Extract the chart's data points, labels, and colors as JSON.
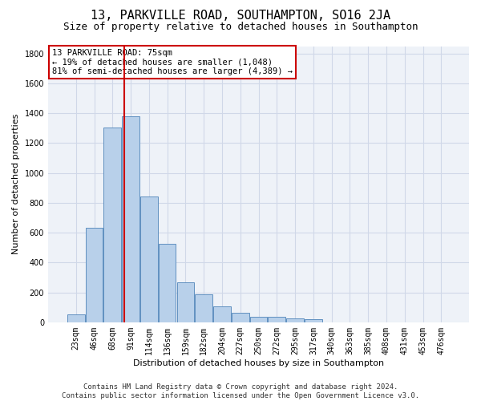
{
  "title": "13, PARKVILLE ROAD, SOUTHAMPTON, SO16 2JA",
  "subtitle": "Size of property relative to detached houses in Southampton",
  "xlabel": "Distribution of detached houses by size in Southampton",
  "ylabel": "Number of detached properties",
  "footer_line1": "Contains HM Land Registry data © Crown copyright and database right 2024.",
  "footer_line2": "Contains public sector information licensed under the Open Government Licence v3.0.",
  "bar_labels": [
    "23sqm",
    "46sqm",
    "68sqm",
    "91sqm",
    "114sqm",
    "136sqm",
    "159sqm",
    "182sqm",
    "204sqm",
    "227sqm",
    "250sqm",
    "272sqm",
    "295sqm",
    "317sqm",
    "340sqm",
    "363sqm",
    "385sqm",
    "408sqm",
    "431sqm",
    "453sqm",
    "476sqm"
  ],
  "bar_values": [
    55,
    635,
    1305,
    1380,
    845,
    525,
    270,
    185,
    105,
    65,
    38,
    38,
    28,
    18,
    0,
    0,
    0,
    0,
    0,
    0,
    0
  ],
  "bar_color": "#b8d0ea",
  "bar_edgecolor": "#6090c0",
  "vline_x": 2.65,
  "vline_color": "#cc0000",
  "ylim": [
    0,
    1850
  ],
  "yticks": [
    0,
    200,
    400,
    600,
    800,
    1000,
    1200,
    1400,
    1600,
    1800
  ],
  "annotation_title": "13 PARKVILLE ROAD: 75sqm",
  "annotation_line1": "← 19% of detached houses are smaller (1,048)",
  "annotation_line2": "81% of semi-detached houses are larger (4,389) →",
  "annotation_box_color": "#cc0000",
  "grid_color": "#d0d8e8",
  "background_color": "#eef2f8",
  "title_fontsize": 11,
  "subtitle_fontsize": 9,
  "axis_label_fontsize": 8,
  "tick_fontsize": 7,
  "annotation_fontsize": 7.5,
  "footer_fontsize": 6.5
}
